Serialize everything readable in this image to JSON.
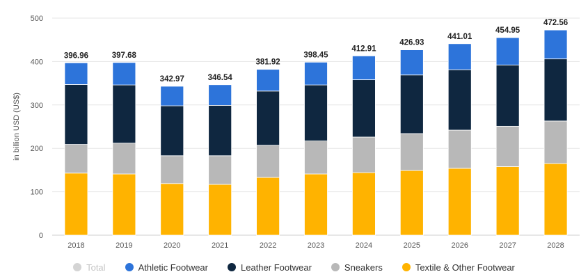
{
  "chart_data": {
    "type": "bar",
    "stacked": true,
    "ylabel": "in billion USD (US$)",
    "ylim": [
      0,
      500
    ],
    "yticks": [
      0,
      100,
      200,
      300,
      400,
      500
    ],
    "categories": [
      "2018",
      "2019",
      "2020",
      "2021",
      "2022",
      "2023",
      "2024",
      "2025",
      "2026",
      "2027",
      "2028"
    ],
    "series": [
      {
        "name": "Textile & Other Footwear",
        "color": "#ffb300",
        "values": [
          143,
          141,
          119,
          117,
          133,
          141,
          144,
          149,
          154,
          158,
          165
        ]
      },
      {
        "name": "Sneakers",
        "color": "#b8b8b8",
        "values": [
          66,
          71,
          64,
          66,
          74,
          76,
          82,
          85,
          88,
          93,
          98
        ]
      },
      {
        "name": "Leather Footwear",
        "color": "#0f2740",
        "values": [
          138,
          134,
          115,
          116,
          125,
          129,
          132,
          135,
          139,
          141,
          143
        ]
      },
      {
        "name": "Athletic Footwear",
        "color": "#2d74da",
        "values": [
          49.96,
          51.68,
          44.97,
          47.54,
          49.92,
          52.45,
          54.91,
          57.93,
          60.01,
          62.95,
          66.56
        ]
      }
    ],
    "totals": [
      "396.96",
      "397.68",
      "342.97",
      "346.54",
      "381.92",
      "398.45",
      "412.91",
      "426.93",
      "441.01",
      "454.95",
      "472.56"
    ],
    "grid": true,
    "legend_position": "bottom"
  },
  "legend": {
    "items": [
      {
        "label": "Total",
        "color": "#d4d4d4",
        "disabled": true
      },
      {
        "label": "Athletic Footwear",
        "color": "#2d74da",
        "disabled": false
      },
      {
        "label": "Leather Footwear",
        "color": "#0f2740",
        "disabled": false
      },
      {
        "label": "Sneakers",
        "color": "#b8b8b8",
        "disabled": false
      },
      {
        "label": "Textile & Other Footwear",
        "color": "#ffb300",
        "disabled": false
      }
    ]
  }
}
